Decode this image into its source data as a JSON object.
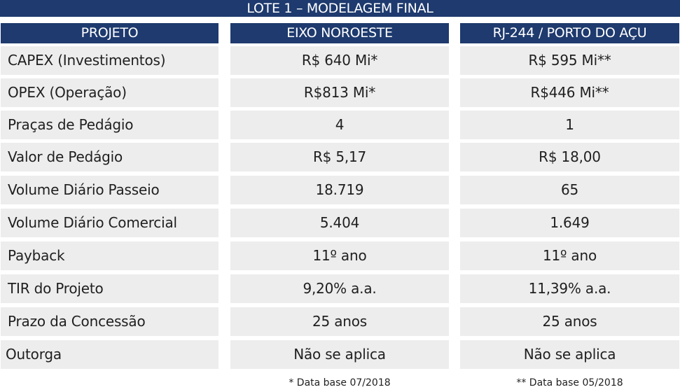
{
  "title": "LOTE 1 – MODELAGEM FINAL",
  "header": {
    "col0": "PROJETO",
    "col1": "EIXO NOROESTE",
    "col2": "RJ-244 / PORTO DO AÇU"
  },
  "rows": [
    {
      "label": "CAPEX (Investimentos)",
      "eixo": "R$ 640 Mi*",
      "rj": "R$ 595 Mi**"
    },
    {
      "label": "OPEX (Operação)",
      "eixo": "R$813 Mi*",
      "rj": "R$446 Mi**"
    },
    {
      "label": "Praças de Pedágio",
      "eixo": "4",
      "rj": "1"
    },
    {
      "label": "Valor de Pedágio",
      "eixo": "R$ 5,17",
      "rj": "R$ 18,00"
    },
    {
      "label": "Volume Diário Passeio",
      "eixo": "18.719",
      "rj": "65"
    },
    {
      "label": "Volume Diário Comercial",
      "eixo": "5.404",
      "rj": "1.649"
    },
    {
      "label": "Payback",
      "eixo": "11º ano",
      "rj": "11º ano"
    },
    {
      "label": "TIR do Projeto",
      "eixo": "9,20% a.a.",
      "rj": "11,39% a.a."
    },
    {
      "label": "Prazo da Concessão",
      "eixo": "25 anos",
      "rj": "25 anos"
    },
    {
      "label": "Outorga",
      "eixo": "Não se aplica",
      "rj": "Não se aplica"
    }
  ],
  "notes": {
    "eixo": "* Data base 07/2018",
    "rj": "** Data base 05/2018"
  },
  "colors": {
    "header_bg": "#1e3a6e",
    "cell_bg": "#ededed"
  }
}
